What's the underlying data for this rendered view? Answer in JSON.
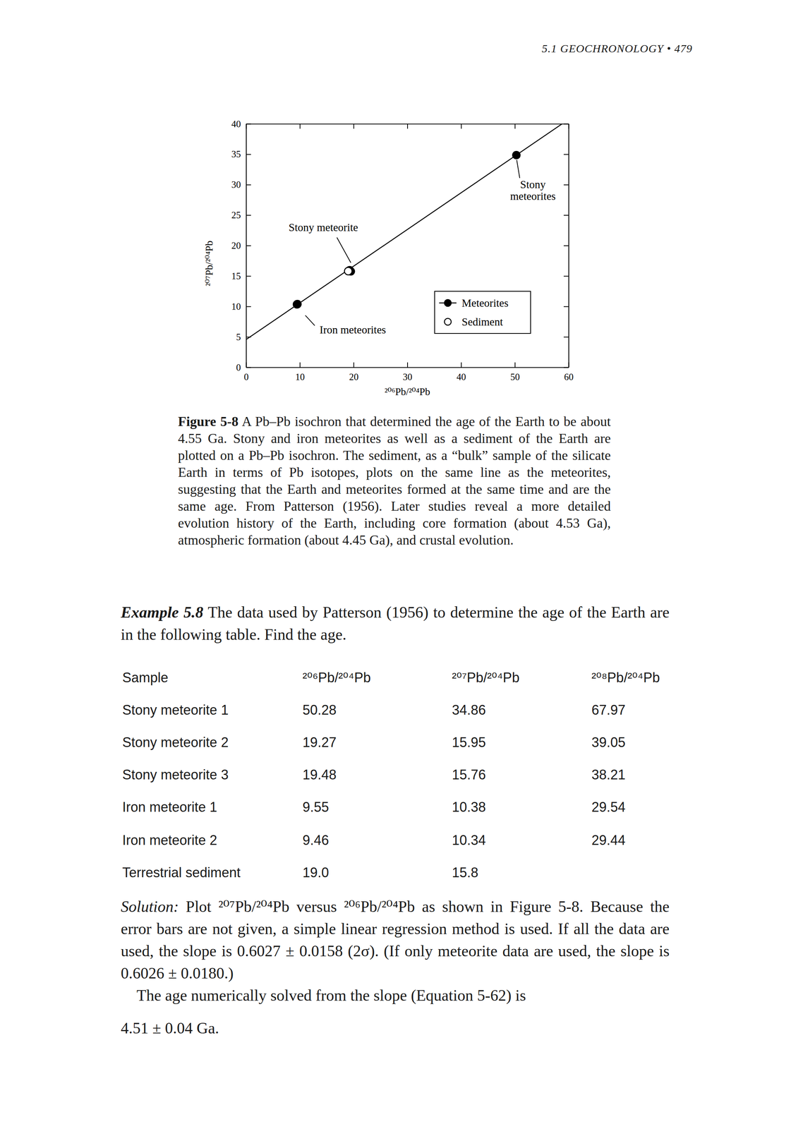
{
  "header": "5.1 GEOCHRONOLOGY • 479",
  "chart_data": {
    "type": "scatter",
    "xlabel": "²⁰⁶Pb/²⁰⁴Pb",
    "ylabel": "²⁰⁷Pb/²⁰⁴Pb",
    "xlim": [
      0,
      60
    ],
    "ylim": [
      0,
      40
    ],
    "xticks": [
      0,
      10,
      20,
      30,
      40,
      50,
      60
    ],
    "yticks": [
      0,
      5,
      10,
      15,
      20,
      25,
      30,
      35,
      40
    ],
    "legend": "lower right",
    "series": [
      {
        "name": "Meteorites",
        "color": "#000000",
        "marker": "circle",
        "line_style": "solid",
        "x": [
          50.28,
          19.27,
          19.48,
          9.55,
          9.46
        ],
        "values": [
          34.86,
          15.95,
          15.76,
          10.38,
          10.34
        ],
        "fit": {
          "x": [
            0,
            58.8
          ],
          "y": [
            4.56,
            40
          ]
        }
      },
      {
        "name": "Sediment",
        "color": "#000000",
        "marker": "open_circle",
        "x": [
          19.0
        ],
        "values": [
          15.8
        ]
      }
    ],
    "annotations": [
      {
        "text": [
          "Stony",
          "meteorites"
        ],
        "x": 50.28,
        "y": 34.86
      },
      {
        "text": [
          "Stony meteorite"
        ],
        "x": 19.27,
        "y": 15.95
      },
      {
        "text": [
          "Iron meteorites"
        ],
        "x": 9.55,
        "y": 10.38
      }
    ]
  },
  "caption": {
    "label": "Figure 5-8",
    "text": "A Pb–Pb isochron that determined the age of the Earth to be about 4.55 Ga. Stony and iron meteorites as well as a sediment of the Earth are plotted on a Pb–Pb isochron. The sediment, as a “bulk” sample of the silicate Earth in terms of Pb isotopes, plots on the same line as the meteorites, suggesting that the Earth and meteorites formed at the same time and are the same age. From Patterson (1956). Later studies reveal a more detailed evolution history of the Earth, including core formation (about 4.53 Ga), atmospheric formation (about 4.45 Ga), and crustal evolution."
  },
  "example": {
    "label": "Example 5.8",
    "text": "The data used by Patterson (1956) to determine the age of the Earth are in the following table. Find the age."
  },
  "table": {
    "columns": [
      "Sample",
      "²⁰⁶Pb/²⁰⁴Pb",
      "²⁰⁷Pb/²⁰⁴Pb",
      "²⁰⁸Pb/²⁰⁴Pb"
    ],
    "rows": [
      [
        "Stony meteorite 1",
        "50.28",
        "34.86",
        "67.97"
      ],
      [
        "Stony meteorite 2",
        "19.27",
        "15.95",
        "39.05"
      ],
      [
        "Stony meteorite 3",
        "19.48",
        "15.76",
        "38.21"
      ],
      [
        "Iron meteorite 1",
        "9.55",
        "10.38",
        "29.54"
      ],
      [
        "Iron meteorite 2",
        "9.46",
        "10.34",
        "29.44"
      ],
      [
        "Terrestrial sediment",
        "19.0",
        "15.8",
        null
      ]
    ]
  },
  "solution": {
    "label": "Solution:",
    "paragraphs": [
      "Plot ²⁰⁷Pb/²⁰⁴Pb versus ²⁰⁶Pb/²⁰⁴Pb as shown in Figure 5-8. Because the error bars are not given, a simple linear regression method is used. If all the data are used, the slope is 0.6027 ± 0.0158 (2σ). (If only meteorite data are used, the slope is 0.6026 ± 0.0180.)",
      "The age numerically solved from the slope (Equation 5-62) is",
      "4.51 ± 0.04 Ga."
    ]
  }
}
